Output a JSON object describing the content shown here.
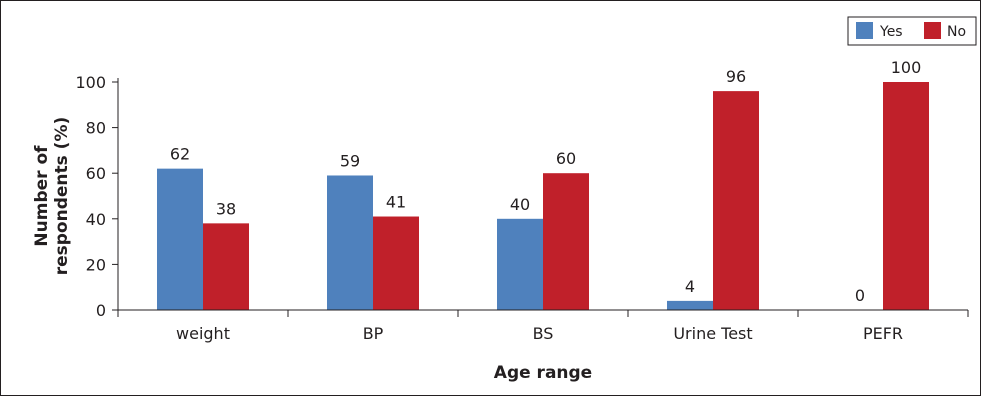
{
  "chart_data": {
    "type": "bar",
    "title": "",
    "xlabel": "Age range",
    "ylabel": [
      "Number of",
      "respondents (%)"
    ],
    "categories": [
      "weight",
      "BP",
      "BS",
      "Urine Test",
      "PEFR"
    ],
    "series": [
      {
        "name": "Yes",
        "color": "#4f81bd",
        "values": [
          62,
          59,
          40,
          4,
          0
        ]
      },
      {
        "name": "No",
        "color": "#c0202a",
        "values": [
          38,
          41,
          60,
          96,
          100
        ]
      }
    ],
    "ylim": [
      0,
      100
    ],
    "yticks": [
      0,
      20,
      40,
      60,
      80,
      100
    ],
    "grid": false,
    "legend_position": "top-right"
  }
}
